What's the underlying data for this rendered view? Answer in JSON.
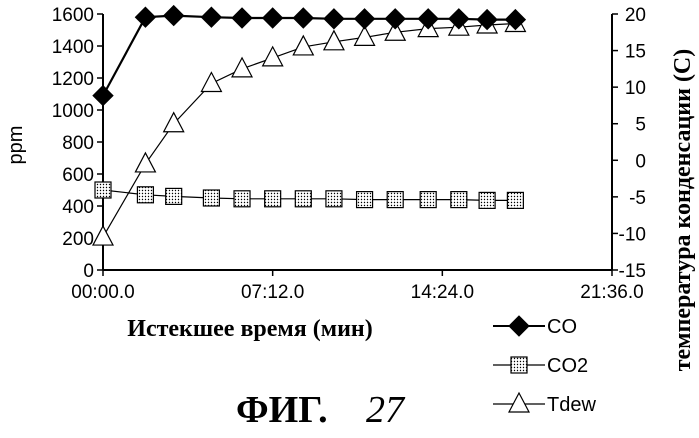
{
  "chart_data": {
    "type": "line",
    "xlabel": "Истекшее время (мин)",
    "ylabel": "ppm",
    "ylabel_right": "температура конденсации (C)",
    "x_ticks": [
      "00:00.0",
      "07:12.0",
      "14:24.0",
      "21:36.0"
    ],
    "y_ticks": [
      "0",
      "200",
      "400",
      "600",
      "800",
      "1000",
      "1200",
      "1400",
      "1600"
    ],
    "y2_ticks": [
      "-15",
      "-10",
      "-5",
      "0",
      "5",
      "10",
      "15",
      "20"
    ],
    "xlim_minutes": [
      0,
      21.6
    ],
    "ylim": [
      0,
      1600
    ],
    "y2lim": [
      -15,
      20
    ],
    "legend_position": "bottom-right",
    "series": [
      {
        "name": "CO",
        "axis": "left",
        "marker": "diamond-filled",
        "x_minutes": [
          0,
          1.8,
          3.0,
          4.6,
          5.9,
          7.2,
          8.5,
          9.8,
          11.1,
          12.4,
          13.8,
          15.1,
          16.3,
          17.5
        ],
        "values": [
          1090,
          1580,
          1590,
          1580,
          1575,
          1575,
          1575,
          1570,
          1570,
          1570,
          1570,
          1570,
          1565,
          1565
        ]
      },
      {
        "name": "CO2",
        "axis": "left",
        "marker": "square-dotted",
        "x_minutes": [
          0,
          1.8,
          3.0,
          4.6,
          5.9,
          7.2,
          8.5,
          9.8,
          11.1,
          12.4,
          13.8,
          15.1,
          16.3,
          17.5
        ],
        "values": [
          500,
          470,
          460,
          450,
          445,
          445,
          445,
          445,
          440,
          440,
          440,
          440,
          435,
          435
        ]
      },
      {
        "name": "Tdew",
        "axis": "right",
        "marker": "triangle-open",
        "x_minutes": [
          0,
          1.8,
          3.0,
          4.6,
          5.9,
          7.2,
          8.5,
          9.8,
          11.1,
          12.4,
          13.8,
          15.1,
          16.3,
          17.5
        ],
        "values": [
          -10.5,
          -0.5,
          5,
          10.5,
          12.5,
          14,
          15.5,
          16.2,
          16.8,
          17.5,
          18,
          18.2,
          18.5,
          18.7
        ]
      }
    ],
    "colors": {
      "line": "#000000",
      "background": "#ffffff"
    }
  },
  "caption": {
    "prefix": "ФИГ.",
    "number": "27"
  }
}
